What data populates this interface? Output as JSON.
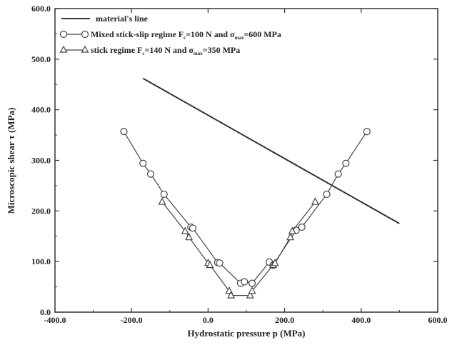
{
  "chart_data": {
    "type": "line",
    "xlabel": "Hydrostatic pressure p (MPa)",
    "ylabel": "Microscopic shear τ (MPa)",
    "xlim": [
      -400,
      600
    ],
    "ylim": [
      0,
      600
    ],
    "x_ticks": [
      "-400.0",
      "-200.0",
      "0.0",
      "200.0",
      "400.0",
      "600.0"
    ],
    "y_ticks": [
      "0.0",
      "100.0",
      "200.0",
      "300.0",
      "400.0",
      "500.0",
      "600.0"
    ],
    "x_tick_values": [
      -400,
      -200,
      0,
      200,
      400,
      600
    ],
    "y_tick_values": [
      0,
      100,
      200,
      300,
      400,
      500,
      600
    ],
    "grid": false,
    "legend_position": "top-left",
    "series": [
      {
        "name": "material's line",
        "legend_text": "material's line",
        "marker": "none",
        "color": "#333333",
        "x": [
          -170,
          500
        ],
        "y": [
          462,
          175
        ]
      },
      {
        "name": "Mixed stick-slip regime Fc=100 N and σmax=600 MPa",
        "legend_prefix": "Mixed stick-slip regime F",
        "legend_sub1": "c",
        "legend_mid": "=100 N and σ",
        "legend_sub2": "max",
        "legend_suffix": "=600 MPa",
        "marker": "circle",
        "color": "#444444",
        "x": [
          -220,
          -170,
          -150,
          -115,
          -45,
          -40,
          25,
          30,
          85,
          95,
          115,
          160,
          170,
          230,
          245,
          310,
          340,
          360,
          415
        ],
        "y": [
          357,
          294,
          273,
          233,
          168,
          166,
          98,
          97,
          57,
          60,
          57,
          99,
          93,
          162,
          168,
          233,
          273,
          294,
          357
        ]
      },
      {
        "name": "stick regime Fc=140 N and σmax=350 MPa",
        "legend_prefix": "stick regime F",
        "legend_sub1": "c",
        "legend_mid": "=140 N and σ",
        "legend_sub2": "max",
        "legend_suffix": "=350 MPa",
        "marker": "triangle",
        "color": "#444444",
        "x": [
          -120,
          -60,
          -50,
          0,
          5,
          55,
          60,
          110,
          115,
          170,
          175,
          215,
          220,
          280
        ],
        "y": [
          218,
          160,
          148,
          97,
          93,
          42,
          33,
          33,
          42,
          93,
          97,
          148,
          160,
          218
        ]
      }
    ]
  }
}
